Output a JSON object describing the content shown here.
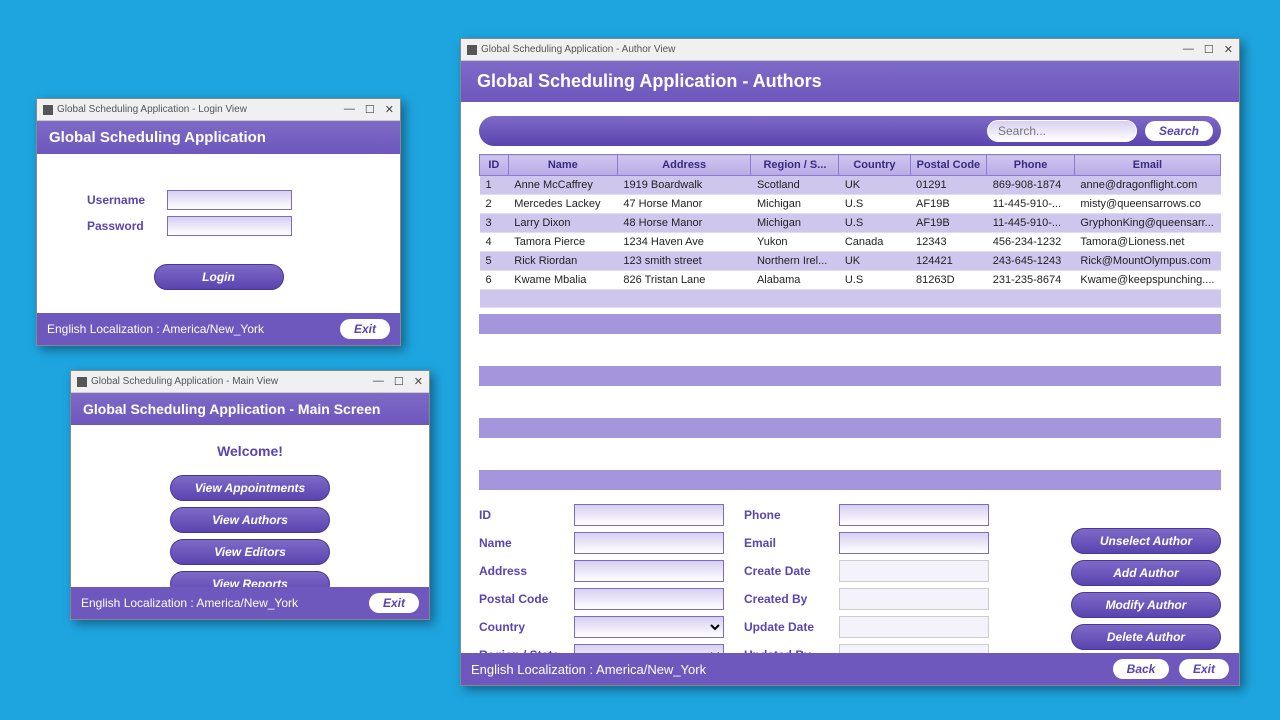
{
  "login": {
    "winTitle": "Global Scheduling Application - Login View",
    "header": "Global Scheduling Application",
    "usernameLabel": "Username",
    "passwordLabel": "Password",
    "loginBtn": "Login",
    "footerText": "English Localization : America/New_York",
    "exitBtn": "Exit"
  },
  "main": {
    "winTitle": "Global Scheduling Application - Main View",
    "header": "Global Scheduling Application - Main Screen",
    "welcome": "Welcome!",
    "buttons": {
      "appointments": "View Appointments",
      "authors": "View Authors",
      "editors": "View Editors",
      "reports": "View Reports"
    },
    "footerText": "English Localization : America/New_York",
    "exitBtn": "Exit"
  },
  "author": {
    "winTitle": "Global Scheduling Application - Author View",
    "header": "Global Scheduling Application - Authors",
    "searchPlaceholder": "Search...",
    "searchBtn": "Search",
    "columns": {
      "id": "ID",
      "name": "Name",
      "address": "Address",
      "region": "Region / S...",
      "country": "Country",
      "postal": "Postal Code",
      "phone": "Phone",
      "email": "Email"
    },
    "rows": [
      {
        "id": "1",
        "name": "Anne McCaffrey",
        "address": "1919 Boardwalk",
        "region": "Scotland",
        "country": "UK",
        "postal": "01291",
        "phone": "869-908-1874",
        "email": "anne@dragonflight.com"
      },
      {
        "id": "2",
        "name": "Mercedes Lackey",
        "address": "47 Horse Manor",
        "region": "Michigan",
        "country": "U.S",
        "postal": "AF19B",
        "phone": "11-445-910-...",
        "email": "misty@queensarrows.co"
      },
      {
        "id": "3",
        "name": "Larry Dixon",
        "address": "48 Horse Manor",
        "region": "Michigan",
        "country": "U.S",
        "postal": "AF19B",
        "phone": "11-445-910-...",
        "email": "GryphonKing@queensarr..."
      },
      {
        "id": "4",
        "name": "Tamora Pierce",
        "address": "1234 Haven Ave",
        "region": "Yukon",
        "country": "Canada",
        "postal": "12343",
        "phone": "456-234-1232",
        "email": "Tamora@Lioness.net"
      },
      {
        "id": "5",
        "name": "Rick Riordan",
        "address": "123 smith street",
        "region": "Northern Irel...",
        "country": "UK",
        "postal": "124421",
        "phone": "243-645-1243",
        "email": "Rick@MountOlympus.com"
      },
      {
        "id": "6",
        "name": "Kwame Mbalia",
        "address": "826 Tristan Lane",
        "region": "Alabama",
        "country": "U.S",
        "postal": "81263D",
        "phone": "231-235-8674",
        "email": "Kwame@keepspunching...."
      }
    ],
    "form": {
      "id": "ID",
      "name": "Name",
      "address": "Address",
      "postal": "Postal Code",
      "country": "Country",
      "region": "Region / State",
      "phone": "Phone",
      "email": "Email",
      "createDate": "Create Date",
      "createdBy": "Created By",
      "updateDate": "Update Date",
      "updatedBy": "Updated By"
    },
    "actions": {
      "unselect": "Unselect Author",
      "add": "Add Author",
      "modify": "Modify Author",
      "delete": "Delete Author"
    },
    "footerText": "English Localization : America/New_York",
    "backBtn": "Back",
    "exitBtn": "Exit"
  }
}
